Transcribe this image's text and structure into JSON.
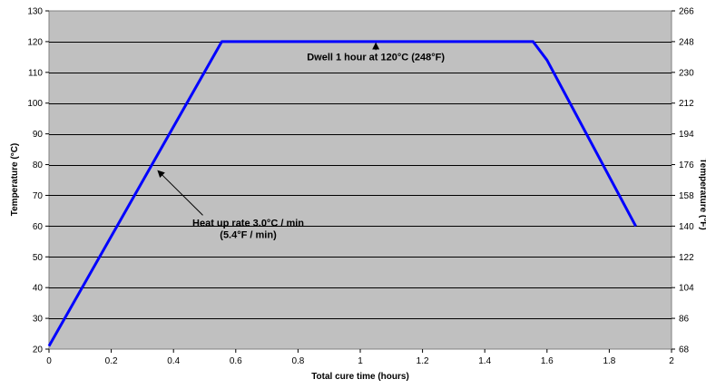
{
  "chart_data": {
    "type": "line",
    "xlabel": "Total cure time (hours)",
    "ylabel": "Temperature (°C)",
    "y2label": "Temperature (°F)",
    "xlim": [
      0,
      2
    ],
    "ylim": [
      20,
      130
    ],
    "y2lim": [
      68,
      266
    ],
    "xticks": [
      0,
      0.2,
      0.4,
      0.6,
      0.8,
      1,
      1.2,
      1.4,
      1.6,
      1.8,
      2
    ],
    "yticks": [
      20,
      30,
      40,
      50,
      60,
      70,
      80,
      90,
      100,
      110,
      120,
      130
    ],
    "y2ticks": [
      68,
      86,
      104,
      122,
      140,
      158,
      176,
      194,
      212,
      230,
      248,
      266
    ],
    "grid": "horizontal",
    "background": "#c0c0c0",
    "series": [
      {
        "color": "#0000ff",
        "x": [
          0,
          0.555,
          1.555,
          1.6,
          1.885
        ],
        "y": [
          21,
          120,
          120,
          114,
          60
        ]
      }
    ],
    "annotations": [
      {
        "lines": [
          "Dwell 1 hour at 120°C (248°F)"
        ],
        "text_at": [
          1.05,
          114
        ],
        "arrow_to": [
          1.05,
          119.5
        ]
      },
      {
        "lines": [
          "Heat up rate 3.0°C / min",
          "(5.4°F / min)"
        ],
        "text_at": [
          0.64,
          60
        ],
        "arrow_to": [
          0.35,
          78
        ]
      }
    ]
  }
}
